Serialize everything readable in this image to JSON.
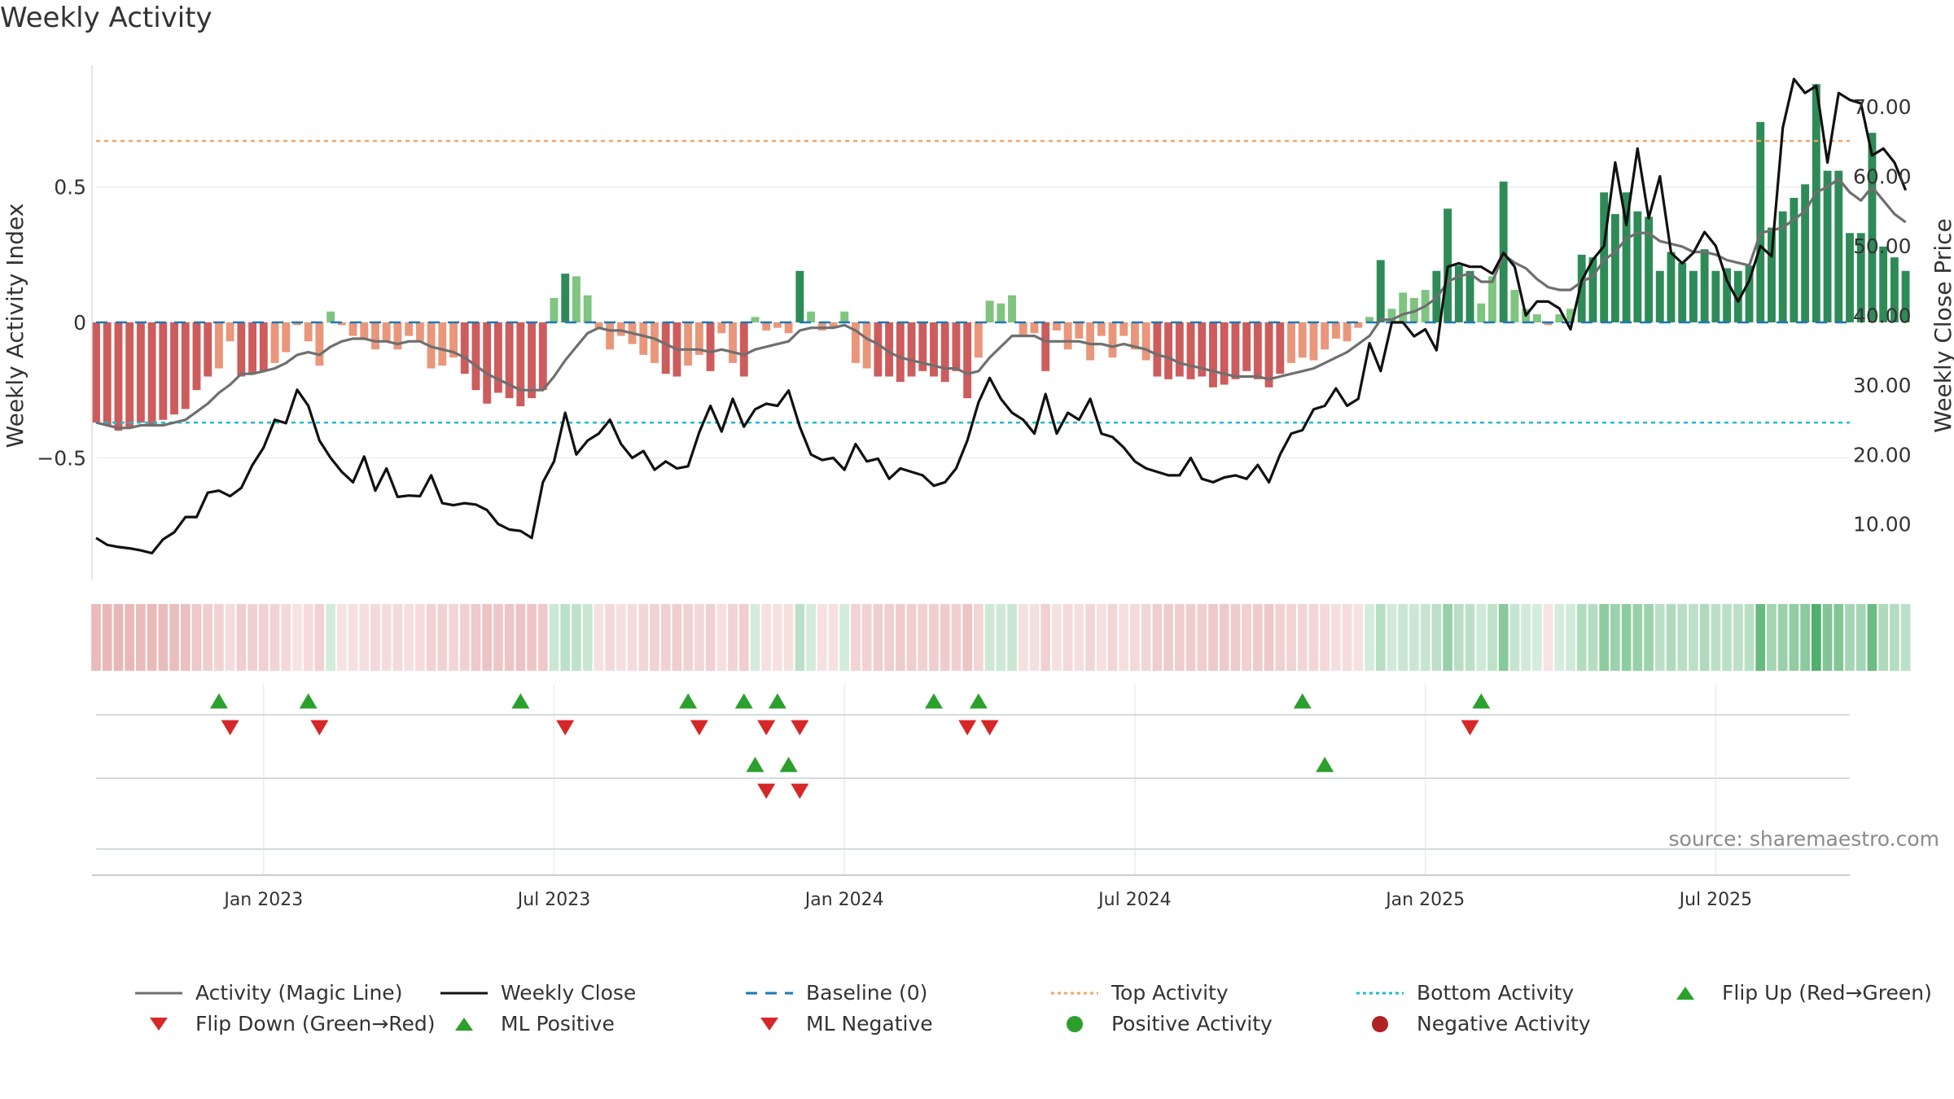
{
  "title": "Weekly Activity",
  "source": "source: sharemaestro.com",
  "colors": {
    "green_dark": "#2e8b57",
    "green_light": "#7fc47f",
    "red_dark": "#cd5c5c",
    "red_light": "#e9967a",
    "close": "#111111",
    "magic": "#6f6f6f",
    "baseline": "#1f77b4",
    "top": "#f4a460",
    "bottom": "#17becf",
    "marker_green": "#2ca02c",
    "marker_red": "#d62728"
  },
  "chart_data": {
    "type": "bar+line",
    "title": "Weekly Activity",
    "xlabel": "",
    "ylabel_left": "Weekly Activity Index",
    "ylabel_right": "Weekly Close Price",
    "ylim_left": [
      -0.95,
      0.95
    ],
    "ylim_right": [
      2,
      76
    ],
    "left_ticks": [
      {
        "value": 0.5,
        "label": "0.5"
      },
      {
        "value": 0,
        "label": "0"
      },
      {
        "value": -0.5,
        "label": "−0.5"
      }
    ],
    "right_ticks": [
      {
        "value": 70,
        "label": "70.00"
      },
      {
        "value": 60,
        "label": "60.00"
      },
      {
        "value": 50,
        "label": "50.00"
      },
      {
        "value": 40,
        "label": "40.00"
      },
      {
        "value": 30,
        "label": "30.00"
      },
      {
        "value": 20,
        "label": "20.00"
      },
      {
        "value": 10,
        "label": "10.00"
      }
    ],
    "x_range_weeks": [
      0,
      157
    ],
    "x_ticks": [
      {
        "week": 15,
        "label": "Jan 2023"
      },
      {
        "week": 41,
        "label": "Jul 2023"
      },
      {
        "week": 67,
        "label": "Jan 2024"
      },
      {
        "week": 93,
        "label": "Jul 2024"
      },
      {
        "week": 119,
        "label": "Jan 2025"
      },
      {
        "week": 145,
        "label": "Jul 2025"
      }
    ],
    "top_activity": 0.67,
    "bottom_activity": -0.37,
    "baseline": 0,
    "activity": [
      -0.37,
      -0.38,
      -0.4,
      -0.39,
      -0.37,
      -0.38,
      -0.36,
      -0.34,
      -0.32,
      -0.25,
      -0.2,
      -0.17,
      -0.07,
      -0.2,
      -0.19,
      -0.18,
      -0.15,
      -0.11,
      -0.01,
      -0.07,
      -0.16,
      0.04,
      -0.01,
      -0.05,
      -0.06,
      -0.1,
      -0.07,
      -0.1,
      -0.05,
      -0.07,
      -0.17,
      -0.16,
      -0.13,
      -0.19,
      -0.25,
      -0.3,
      -0.26,
      -0.28,
      -0.31,
      -0.28,
      -0.25,
      0.09,
      0.18,
      0.17,
      0.1,
      -0.02,
      -0.1,
      -0.05,
      -0.08,
      -0.12,
      -0.15,
      -0.19,
      -0.2,
      -0.16,
      -0.12,
      -0.18,
      -0.04,
      -0.15,
      -0.2,
      0.02,
      -0.03,
      -0.02,
      -0.04,
      0.19,
      0.04,
      -0.03,
      -0.02,
      0.04,
      -0.15,
      -0.17,
      -0.2,
      -0.2,
      -0.22,
      -0.2,
      -0.18,
      -0.2,
      -0.22,
      -0.18,
      -0.28,
      -0.13,
      0.08,
      0.07,
      0.1,
      -0.05,
      -0.04,
      -0.18,
      -0.03,
      -0.1,
      -0.06,
      -0.14,
      -0.05,
      -0.13,
      -0.05,
      -0.1,
      -0.14,
      -0.2,
      -0.21,
      -0.2,
      -0.21,
      -0.2,
      -0.24,
      -0.23,
      -0.21,
      -0.18,
      -0.21,
      -0.24,
      -0.19,
      -0.15,
      -0.13,
      -0.14,
      -0.1,
      -0.06,
      -0.07,
      -0.02,
      0.02,
      0.23,
      0.05,
      0.11,
      0.09,
      0.12,
      0.19,
      0.42,
      0.21,
      0.19,
      0.07,
      0.17,
      0.52,
      0.12,
      0.05,
      0.03,
      -0.01,
      0.03,
      0.05,
      0.25,
      0.24,
      0.48,
      0.4,
      0.48,
      0.41,
      0.39,
      0.19,
      0.26,
      0.22,
      0.19,
      0.27,
      0.19,
      0.2,
      0.19,
      0.21,
      0.74,
      0.35,
      0.41,
      0.46,
      0.51,
      0.88,
      0.56,
      0.56,
      0.33,
      0.33,
      0.7,
      0.28,
      0.24,
      0.19
    ],
    "magic_line": [
      -0.37,
      -0.38,
      -0.39,
      -0.39,
      -0.38,
      -0.38,
      -0.38,
      -0.37,
      -0.36,
      -0.33,
      -0.3,
      -0.26,
      -0.23,
      -0.19,
      -0.19,
      -0.18,
      -0.17,
      -0.15,
      -0.12,
      -0.11,
      -0.12,
      -0.09,
      -0.07,
      -0.06,
      -0.06,
      -0.07,
      -0.07,
      -0.08,
      -0.07,
      -0.07,
      -0.09,
      -0.1,
      -0.11,
      -0.13,
      -0.16,
      -0.19,
      -0.21,
      -0.23,
      -0.25,
      -0.25,
      -0.25,
      -0.2,
      -0.14,
      -0.09,
      -0.04,
      -0.02,
      -0.03,
      -0.03,
      -0.04,
      -0.05,
      -0.06,
      -0.08,
      -0.1,
      -0.1,
      -0.1,
      -0.11,
      -0.1,
      -0.11,
      -0.12,
      -0.1,
      -0.09,
      -0.08,
      -0.07,
      -0.03,
      -0.02,
      -0.02,
      -0.02,
      -0.01,
      -0.03,
      -0.06,
      -0.08,
      -0.11,
      -0.13,
      -0.14,
      -0.15,
      -0.16,
      -0.17,
      -0.17,
      -0.19,
      -0.18,
      -0.13,
      -0.09,
      -0.05,
      -0.05,
      -0.05,
      -0.07,
      -0.07,
      -0.07,
      -0.07,
      -0.08,
      -0.08,
      -0.09,
      -0.08,
      -0.09,
      -0.1,
      -0.12,
      -0.13,
      -0.15,
      -0.16,
      -0.17,
      -0.18,
      -0.19,
      -0.2,
      -0.2,
      -0.2,
      -0.21,
      -0.2,
      -0.19,
      -0.18,
      -0.17,
      -0.15,
      -0.13,
      -0.11,
      -0.08,
      -0.05,
      0.01,
      0.01,
      0.03,
      0.04,
      0.06,
      0.09,
      0.15,
      0.17,
      0.18,
      0.15,
      0.15,
      0.25,
      0.22,
      0.2,
      0.16,
      0.13,
      0.12,
      0.12,
      0.15,
      0.17,
      0.23,
      0.26,
      0.31,
      0.33,
      0.33,
      0.3,
      0.29,
      0.28,
      0.26,
      0.26,
      0.25,
      0.23,
      0.22,
      0.21,
      0.33,
      0.34,
      0.35,
      0.38,
      0.41,
      0.48,
      0.5,
      0.53,
      0.48,
      0.45,
      0.5,
      0.45,
      0.4,
      0.37
    ],
    "weekly_close": [
      8.0,
      7.0,
      6.7,
      6.5,
      6.2,
      5.8,
      7.8,
      8.8,
      11.0,
      11.0,
      14.5,
      14.8,
      14.0,
      15.2,
      18.5,
      21.0,
      25.0,
      24.5,
      29.3,
      27.0,
      22.0,
      19.5,
      17.5,
      16.0,
      19.7,
      14.8,
      18.0,
      13.9,
      14.1,
      14.0,
      17.0,
      13.0,
      12.7,
      13.0,
      12.8,
      12.0,
      10.0,
      9.2,
      9.0,
      8.0,
      16.0,
      19.0,
      26.0,
      20.0,
      22.0,
      23.0,
      25.0,
      21.5,
      19.5,
      20.5,
      17.8,
      19.0,
      18.0,
      18.3,
      23.2,
      27.0,
      23.3,
      28.0,
      24.0,
      26.5,
      27.3,
      27.0,
      29.2,
      24.0,
      20.0,
      19.2,
      19.5,
      17.8,
      21.5,
      19.0,
      19.4,
      16.5,
      18.0,
      17.5,
      17.0,
      15.5,
      16.0,
      18.0,
      22.0,
      27.5,
      31.0,
      28.0,
      26.0,
      25.0,
      23.0,
      28.7,
      23.0,
      26.0,
      25.0,
      28.0,
      23.0,
      22.5,
      21.0,
      19.0,
      18.0,
      17.5,
      17.0,
      17.0,
      19.5,
      16.5,
      16.0,
      16.7,
      17.0,
      16.5,
      18.5,
      16.0,
      20.0,
      23.0,
      23.5,
      26.5,
      27.0,
      29.5,
      27.0,
      28.0,
      36.0,
      32.0,
      39.0,
      39.0,
      37.0,
      38.0,
      35.0,
      47.0,
      47.5,
      47.0,
      47.0,
      46.0,
      49.0,
      47.0,
      40.0,
      42.0,
      42.0,
      41.0,
      38.0,
      45.0,
      48.0,
      50.0,
      62.0,
      53.0,
      64.0,
      54.0,
      60.0,
      49.0,
      47.5,
      49.0,
      52.0,
      50.0,
      45.0,
      42.0,
      45.0,
      50.0,
      48.5,
      67.0,
      74.0,
      72.0,
      73.0,
      62.0,
      72.0,
      71.0,
      70.5,
      63.0,
      64.0,
      62.0,
      58.0
    ],
    "flip_up_weeks": [
      11,
      19,
      38,
      53,
      58,
      61,
      75,
      79,
      108,
      124
    ],
    "flip_down_weeks": [
      12,
      20,
      42,
      54,
      60,
      63,
      78,
      80,
      123
    ],
    "ml_positive_weeks": [
      59,
      62,
      110
    ],
    "ml_negative_weeks": [
      60,
      63
    ]
  },
  "legend": [
    {
      "label": "Activity (Magic Line)",
      "kind": "line",
      "color": "#6f6f6f"
    },
    {
      "label": "Weekly Close",
      "kind": "line",
      "color": "#111111"
    },
    {
      "label": "Baseline (0)",
      "kind": "dash",
      "color": "#1f77b4"
    },
    {
      "label": "Top Activity",
      "kind": "dot",
      "color": "#f4a460"
    },
    {
      "label": "Bottom Activity",
      "kind": "dot",
      "color": "#17becf"
    },
    {
      "label": "Flip Up (Red→Green)",
      "kind": "tri-up",
      "color": "#2ca02c"
    },
    {
      "label": "Flip Down (Green→Red)",
      "kind": "tri-down",
      "color": "#d62728"
    },
    {
      "label": "ML Positive",
      "kind": "tri-up",
      "color": "#2ca02c"
    },
    {
      "label": "ML Negative",
      "kind": "tri-down",
      "color": "#d62728"
    },
    {
      "label": "Positive Activity",
      "kind": "circle",
      "color": "#2ca02c"
    },
    {
      "label": "Negative Activity",
      "kind": "circle",
      "color": "#b22222"
    }
  ]
}
